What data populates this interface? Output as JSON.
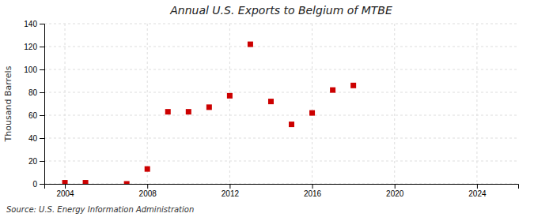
{
  "chart_data": {
    "type": "scatter",
    "title": "Annual U.S. Exports to Belgium of MTBE",
    "ylabel": "Thousand Barrels",
    "annotation": "Source: U.S. Energy Information Administration",
    "x": [
      2004,
      2005,
      2007,
      2008,
      2009,
      2010,
      2011,
      2012,
      2013,
      2014,
      2015,
      2016,
      2017,
      2018
    ],
    "values": [
      1,
      1,
      0,
      13,
      63,
      63,
      67,
      77,
      122,
      72,
      52,
      62,
      82,
      86
    ],
    "color": "#cc0000",
    "marker": "square",
    "xlim": [
      2003.0,
      2026.0
    ],
    "ylim": [
      0,
      140
    ],
    "xticks": [
      2004,
      2008,
      2012,
      2016,
      2020,
      2024
    ],
    "yticks": [
      0,
      20,
      40,
      60,
      80,
      100,
      120,
      140
    ],
    "grid": true
  }
}
